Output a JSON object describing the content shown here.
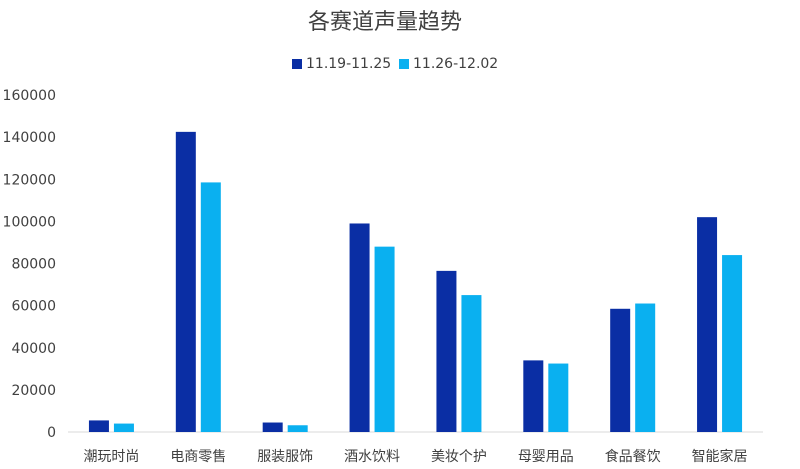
{
  "chart_data": {
    "type": "bar",
    "title": "各赛道声量趋势",
    "categories": [
      "潮玩时尚",
      "电商零售",
      "服装服饰",
      "酒水饮料",
      "美妆个护",
      "母婴用品",
      "食品餐饮",
      "智能家居"
    ],
    "series": [
      {
        "name": "11.19-11.25",
        "color": "#0a2ea4",
        "values": [
          5500,
          142500,
          4500,
          99000,
          76500,
          34000,
          58500,
          102000
        ]
      },
      {
        "name": "11.26-12.02",
        "color": "#0ab0f0",
        "values": [
          4000,
          118500,
          3200,
          88000,
          65000,
          32500,
          61000,
          84000
        ]
      }
    ],
    "y_ticks": [
      "0",
      "20000",
      "40000",
      "60000",
      "80000",
      "100000",
      "120000",
      "140000",
      "160000"
    ],
    "ylim": [
      0,
      160000
    ],
    "grid": false,
    "legend_position": "top-center"
  }
}
